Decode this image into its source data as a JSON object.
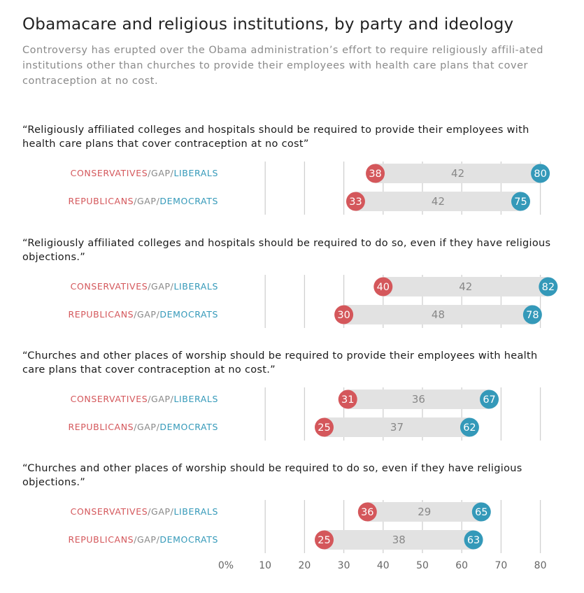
{
  "title": "Obamacare and religious institutions, by party and ideology",
  "subtitle": "Controversy has erupted over the Obama administration’s effort to require religiously affili-ated institutions other than churches to provide their employees with health care plans that cover contraception at no cost.",
  "colors": {
    "left": "#d4575b",
    "right": "#3499b9",
    "bar": "#e2e2e2",
    "gap_text": "#888888",
    "grid": "#d0d0d0"
  },
  "row_labels": {
    "ideology": {
      "a": "CONSERVATIVES",
      "sep1": "/",
      "gap": "GAP",
      "sep2": "/",
      "b": "LIBERALS"
    },
    "party": {
      "a": "REPUBLICANS",
      "sep1": "/",
      "gap": "GAP",
      "sep2": "/",
      "b": "DEMOCRATS"
    }
  },
  "chart_data": {
    "type": "dumbbell",
    "x_ticks": [
      "0%",
      "10",
      "20",
      "30",
      "40",
      "50",
      "60",
      "70",
      "80"
    ],
    "xlim": [
      0,
      80
    ],
    "grid": true,
    "panels": [
      {
        "question": "“Religiously affiliated colleges and hospitals should be required to provide their employees with health care plans that cover contraception at no cost”",
        "rows": [
          {
            "group": "ideology",
            "left": 38,
            "gap": 42,
            "right": 80
          },
          {
            "group": "party",
            "left": 33,
            "gap": 42,
            "right": 75
          }
        ]
      },
      {
        "question": "“Religiously affiliated colleges and hospitals should be required to do so, even if they have religious objections.”",
        "rows": [
          {
            "group": "ideology",
            "left": 40,
            "gap": 42,
            "right": 82
          },
          {
            "group": "party",
            "left": 30,
            "gap": 48,
            "right": 78
          }
        ]
      },
      {
        "question": "“Churches and other places of worship should be required to provide their employees with health care plans that cover contraception at no cost.”",
        "rows": [
          {
            "group": "ideology",
            "left": 31,
            "gap": 36,
            "right": 67
          },
          {
            "group": "party",
            "left": 25,
            "gap": 37,
            "right": 62
          }
        ]
      },
      {
        "question": "“Churches and other places of worship should be required to do so, even if they have religious objections.”",
        "rows": [
          {
            "group": "ideology",
            "left": 36,
            "gap": 29,
            "right": 65
          },
          {
            "group": "party",
            "left": 25,
            "gap": 38,
            "right": 63
          }
        ]
      }
    ]
  }
}
